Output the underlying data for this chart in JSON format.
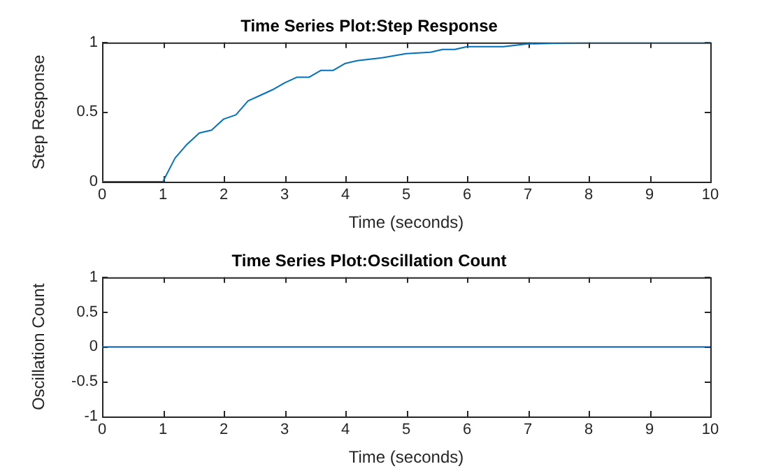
{
  "chart_data": [
    {
      "type": "line",
      "title": "Time Series Plot:Step Response",
      "xlabel": "Time (seconds)",
      "ylabel": "Step Response",
      "xlim": [
        0,
        10
      ],
      "ylim": [
        0,
        1
      ],
      "xticks": [
        0,
        1,
        2,
        3,
        4,
        5,
        6,
        7,
        8,
        9,
        10
      ],
      "yticks": [
        0,
        0.5,
        1
      ],
      "marker": "none",
      "line_style": "solid",
      "series": [
        {
          "color": "#0072bd",
          "x": [
            0,
            1,
            1.2,
            1.4,
            1.6,
            1.8,
            2,
            2.2,
            2.4,
            2.6,
            2.8,
            3,
            3.2,
            3.4,
            3.6,
            3.8,
            4,
            4.2,
            4.6,
            5,
            5.4,
            5.6,
            5.8,
            6,
            6.6,
            7,
            8,
            8.6,
            9,
            10
          ],
          "values": [
            0,
            0,
            0.17,
            0.27,
            0.35,
            0.37,
            0.45,
            0.48,
            0.58,
            0.62,
            0.66,
            0.71,
            0.75,
            0.75,
            0.8,
            0.8,
            0.85,
            0.87,
            0.89,
            0.92,
            0.93,
            0.95,
            0.95,
            0.97,
            0.97,
            0.99,
            1,
            1,
            1,
            1
          ]
        }
      ]
    },
    {
      "type": "line",
      "title": "Time Series Plot:Oscillation Count",
      "xlabel": "Time (seconds)",
      "ylabel": "Oscillation Count",
      "xlim": [
        0,
        10
      ],
      "ylim": [
        -1,
        1
      ],
      "xticks": [
        0,
        1,
        2,
        3,
        4,
        5,
        6,
        7,
        8,
        9,
        10
      ],
      "yticks": [
        -1,
        -0.5,
        0,
        0.5,
        1
      ],
      "marker": "none",
      "line_style": "solid",
      "series": [
        {
          "color": "#0b5aa0",
          "x": [
            0,
            10
          ],
          "values": [
            0,
            0
          ]
        }
      ]
    }
  ]
}
